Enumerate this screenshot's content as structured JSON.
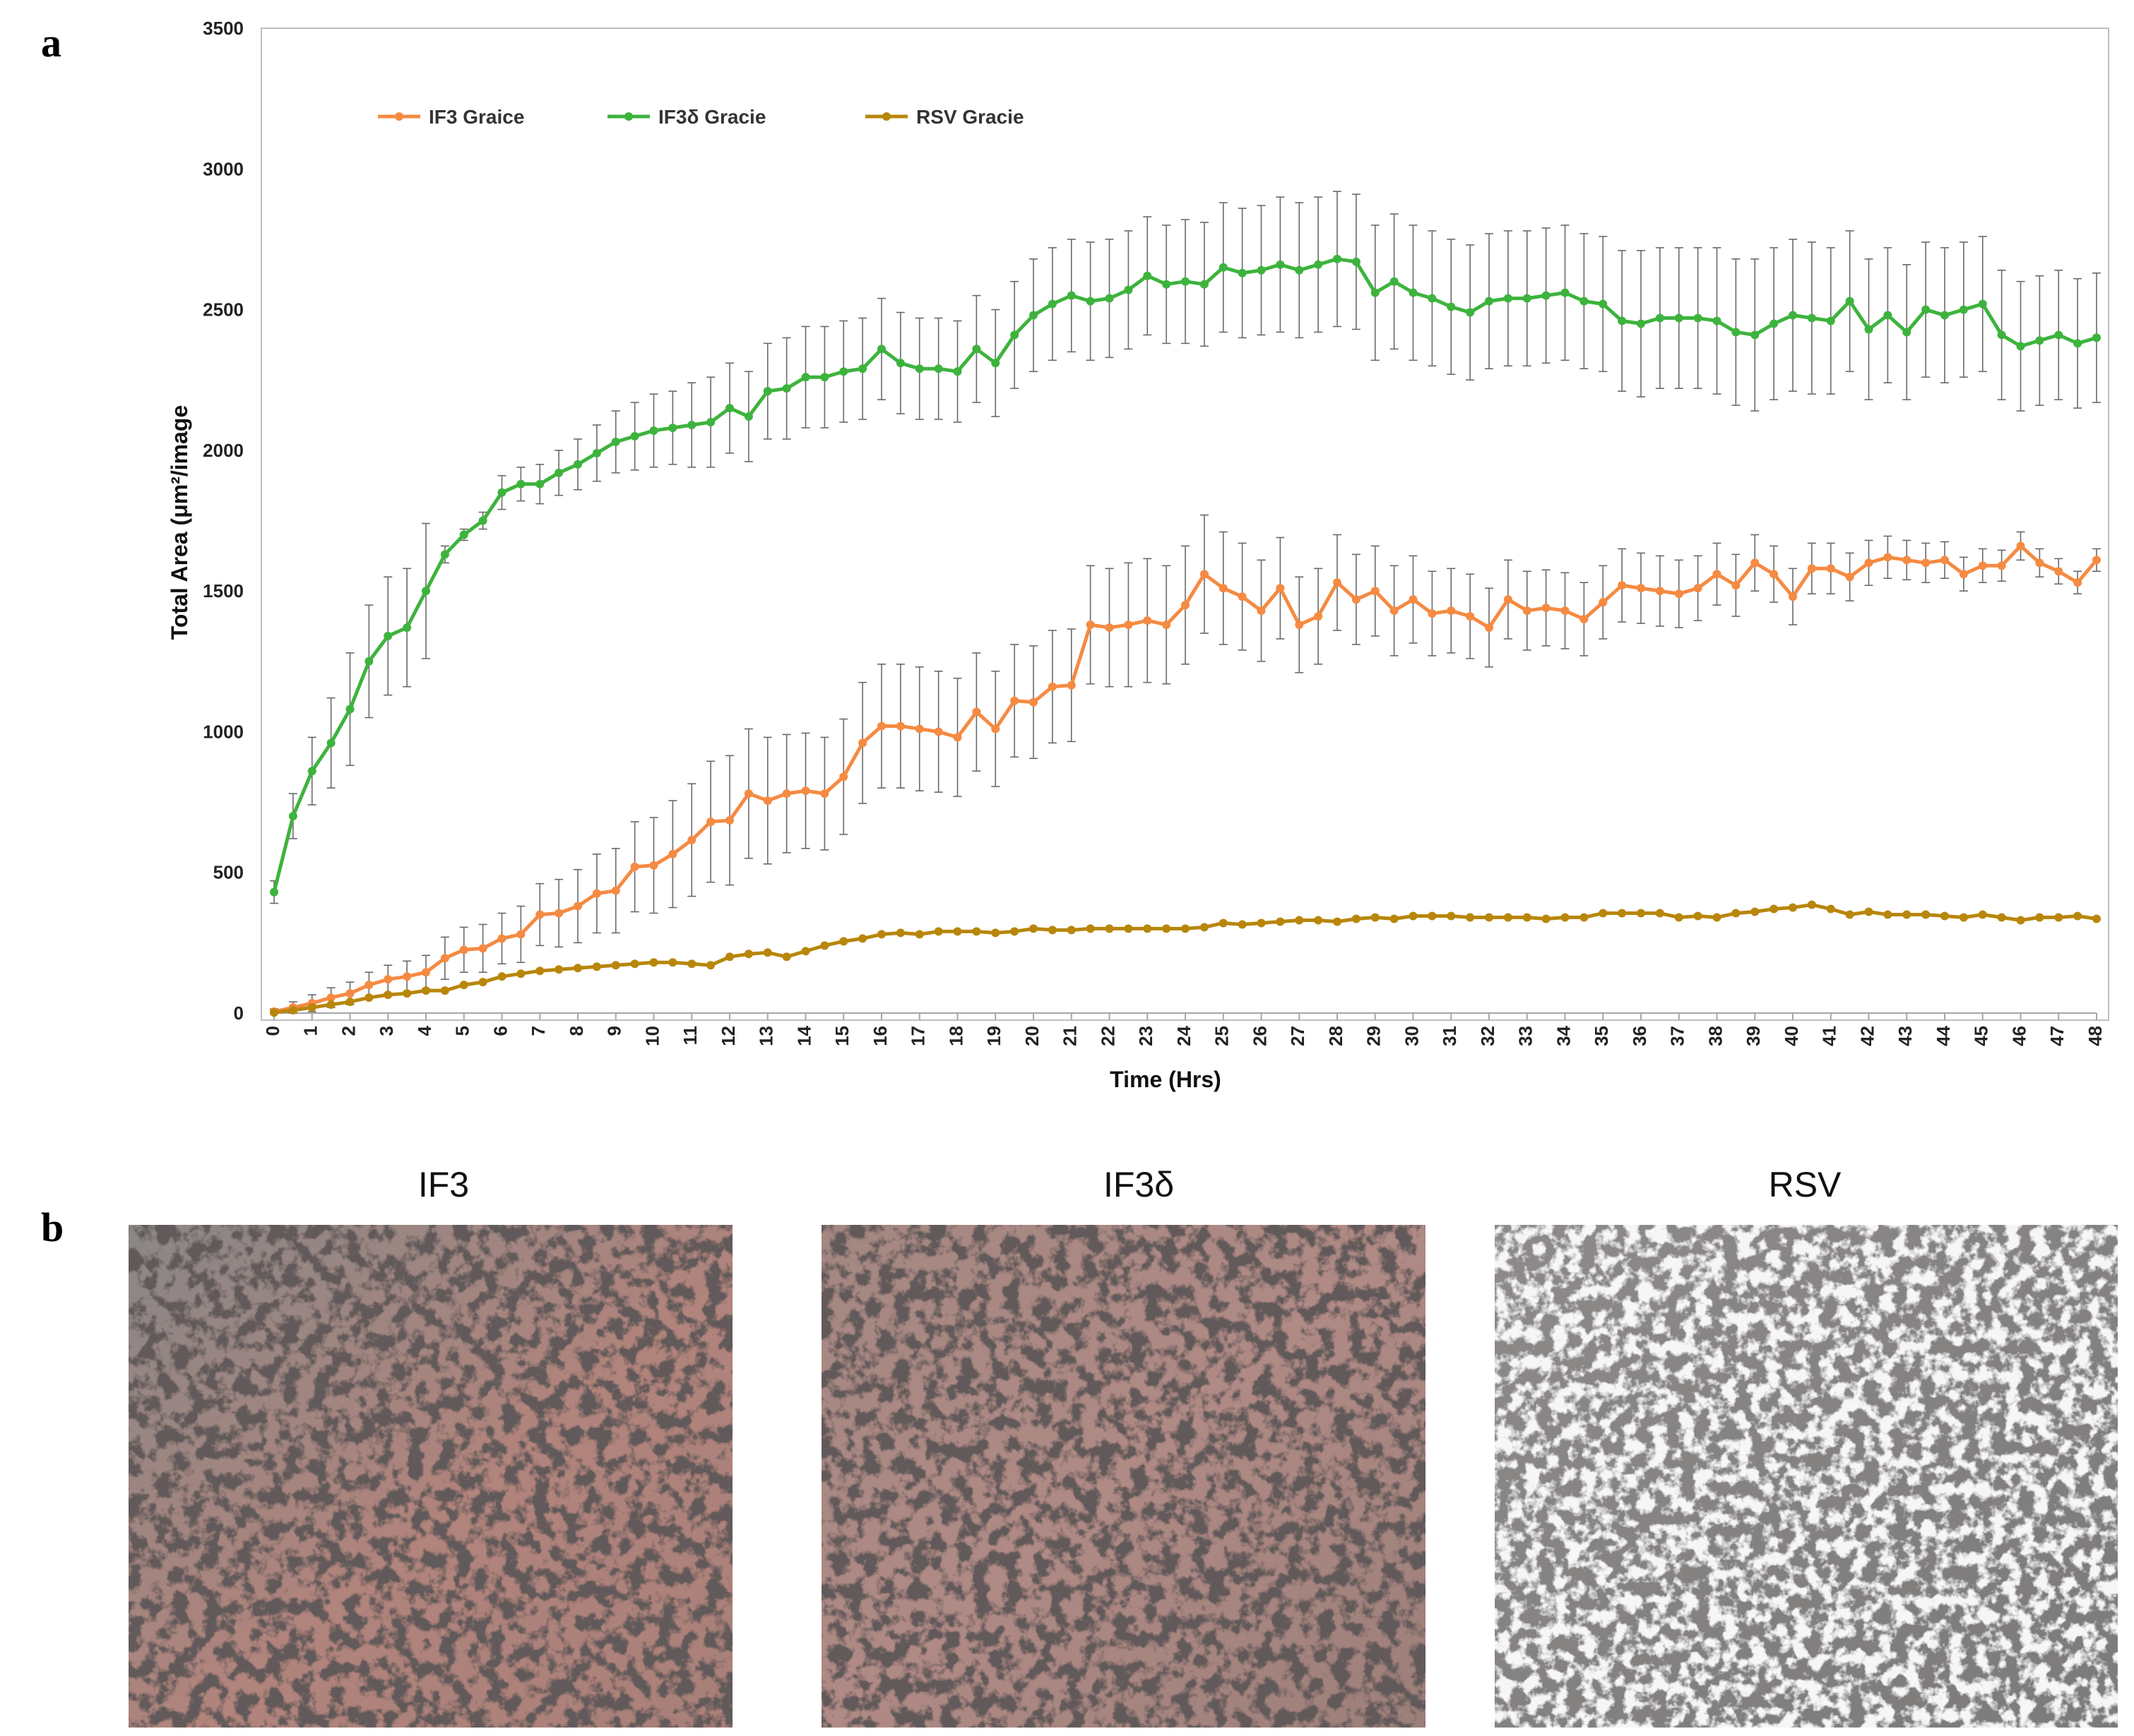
{
  "panel_a_letter": "a",
  "panel_b_letter": "b",
  "chart_data": {
    "type": "line",
    "title": "",
    "xlabel": "Time  (Hrs)",
    "ylabel": "Total Area (μm²/image",
    "ylim": [
      0,
      3500
    ],
    "xlim": [
      0,
      48
    ],
    "yticks": [
      0,
      500,
      1000,
      1500,
      2000,
      2500,
      3000,
      3500
    ],
    "xticks": [
      0,
      1,
      2,
      3,
      4,
      5,
      6,
      7,
      8,
      9,
      10,
      11,
      12,
      13,
      14,
      15,
      16,
      17,
      18,
      19,
      20,
      21,
      22,
      23,
      24,
      25,
      26,
      27,
      28,
      29,
      30,
      31,
      32,
      33,
      34,
      35,
      36,
      37,
      38,
      39,
      40,
      41,
      42,
      43,
      44,
      45,
      46,
      47,
      48
    ],
    "legend_position": "top-left",
    "x": [
      0,
      0.5,
      1,
      1.5,
      2,
      2.5,
      3,
      3.5,
      4,
      4.5,
      5,
      5.5,
      6,
      6.5,
      7,
      7.5,
      8,
      8.5,
      9,
      9.5,
      10,
      10.5,
      11,
      11.5,
      12,
      12.5,
      13,
      13.5,
      14,
      14.5,
      15,
      15.5,
      16,
      16.5,
      17,
      17.5,
      18,
      18.5,
      19,
      19.5,
      20,
      20.5,
      21,
      21.5,
      22,
      22.5,
      23,
      23.5,
      24,
      24.5,
      25,
      25.5,
      26,
      26.5,
      27,
      27.5,
      28,
      28.5,
      29,
      29.5,
      30,
      30.5,
      31,
      31.5,
      32,
      32.5,
      33,
      33.5,
      34,
      34.5,
      35,
      35.5,
      36,
      36.5,
      37,
      37.5,
      38,
      38.5,
      39,
      39.5,
      40,
      40.5,
      41,
      41.5,
      42,
      42.5,
      43,
      43.5,
      44,
      44.5,
      45,
      45.5,
      46,
      46.5,
      47,
      47.5,
      48
    ],
    "series": [
      {
        "name": "IF3 Graice",
        "color": "#f58a42",
        "values": [
          5,
          20,
          35,
          55,
          70,
          100,
          120,
          130,
          145,
          195,
          225,
          230,
          265,
          280,
          350,
          355,
          380,
          425,
          435,
          520,
          525,
          565,
          615,
          680,
          685,
          780,
          755,
          780,
          790,
          780,
          840,
          960,
          1020,
          1020,
          1010,
          1000,
          980,
          1070,
          1010,
          1110,
          1105,
          1160,
          1165,
          1380,
          1370,
          1380,
          1395,
          1380,
          1450,
          1560,
          1510,
          1480,
          1430,
          1510,
          1380,
          1410,
          1530,
          1470,
          1500,
          1430,
          1470,
          1420,
          1430,
          1410,
          1370,
          1470,
          1430,
          1440,
          1430,
          1400,
          1460,
          1520,
          1510,
          1500,
          1490,
          1510,
          1560,
          1520,
          1600,
          1560,
          1480,
          1580,
          1580,
          1550,
          1600,
          1620,
          1610,
          1600,
          1610,
          1560,
          1590,
          1590,
          1660,
          1600,
          1570,
          1530,
          1610
        ],
        "errors": [
          10,
          20,
          30,
          35,
          40,
          45,
          50,
          55,
          60,
          75,
          80,
          85,
          90,
          100,
          110,
          120,
          130,
          140,
          150,
          160,
          170,
          190,
          200,
          215,
          230,
          230,
          225,
          210,
          205,
          200,
          205,
          215,
          220,
          220,
          220,
          215,
          210,
          210,
          205,
          200,
          200,
          200,
          200,
          210,
          210,
          220,
          220,
          210,
          210,
          210,
          200,
          190,
          180,
          180,
          170,
          170,
          170,
          160,
          160,
          160,
          155,
          150,
          150,
          150,
          140,
          140,
          140,
          135,
          135,
          130,
          130,
          130,
          125,
          125,
          120,
          115,
          110,
          110,
          100,
          100,
          100,
          90,
          90,
          85,
          80,
          75,
          70,
          70,
          65,
          60,
          60,
          55,
          50,
          50,
          45,
          40,
          40
        ]
      },
      {
        "name": "IF3δ Gracie",
        "color": "#3db33d",
        "values": [
          430,
          700,
          860,
          960,
          1080,
          1250,
          1340,
          1370,
          1500,
          1630,
          1700,
          1750,
          1850,
          1880,
          1880,
          1920,
          1950,
          1990,
          2030,
          2050,
          2070,
          2080,
          2090,
          2100,
          2150,
          2120,
          2210,
          2220,
          2260,
          2260,
          2280,
          2290,
          2360,
          2310,
          2290,
          2290,
          2280,
          2360,
          2310,
          2410,
          2480,
          2520,
          2550,
          2530,
          2540,
          2570,
          2620,
          2590,
          2600,
          2590,
          2650,
          2630,
          2640,
          2660,
          2640,
          2660,
          2680,
          2670,
          2560,
          2600,
          2560,
          2540,
          2510,
          2490,
          2530,
          2540,
          2540,
          2550,
          2560,
          2530,
          2520,
          2460,
          2450,
          2470,
          2470,
          2470,
          2460,
          2420,
          2410,
          2450,
          2480,
          2470,
          2460,
          2530,
          2430,
          2480,
          2420,
          2500,
          2480,
          2500,
          2520,
          2410,
          2370,
          2390,
          2410,
          2380,
          2400
        ],
        "errors": [
          40,
          80,
          120,
          160,
          200,
          200,
          210,
          210,
          240,
          30,
          20,
          30,
          60,
          60,
          70,
          80,
          90,
          100,
          110,
          120,
          130,
          130,
          150,
          160,
          160,
          160,
          170,
          180,
          180,
          180,
          180,
          180,
          180,
          180,
          180,
          180,
          180,
          190,
          190,
          190,
          200,
          200,
          200,
          210,
          210,
          210,
          210,
          210,
          220,
          220,
          230,
          230,
          230,
          240,
          240,
          240,
          240,
          240,
          240,
          240,
          240,
          240,
          240,
          240,
          240,
          240,
          240,
          240,
          240,
          240,
          240,
          250,
          260,
          250,
          250,
          250,
          260,
          260,
          270,
          270,
          270,
          270,
          260,
          250,
          250,
          240,
          240,
          240,
          240,
          240,
          240,
          230,
          230,
          230,
          230,
          230,
          230
        ]
      },
      {
        "name": "RSV Gracie",
        "color": "#b8860b",
        "values": [
          2,
          10,
          20,
          30,
          40,
          55,
          65,
          70,
          80,
          80,
          100,
          110,
          130,
          140,
          150,
          155,
          160,
          165,
          170,
          175,
          180,
          180,
          175,
          170,
          200,
          210,
          215,
          200,
          220,
          240,
          255,
          265,
          280,
          285,
          280,
          290,
          290,
          290,
          285,
          290,
          300,
          295,
          295,
          300,
          300,
          300,
          300,
          300,
          300,
          305,
          320,
          315,
          320,
          325,
          330,
          330,
          325,
          335,
          340,
          335,
          345,
          345,
          345,
          340,
          340,
          340,
          340,
          335,
          340,
          340,
          355,
          355,
          355,
          355,
          340,
          345,
          340,
          355,
          360,
          370,
          375,
          385,
          370,
          350,
          360,
          350,
          350,
          350,
          345,
          340,
          350,
          340,
          330,
          340,
          340,
          345,
          335
        ]
      }
    ]
  },
  "images": [
    {
      "title": "IF3"
    },
    {
      "title": "IF3δ"
    },
    {
      "title": "RSV"
    }
  ]
}
